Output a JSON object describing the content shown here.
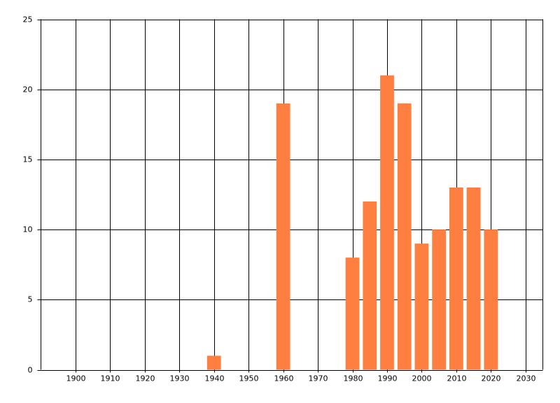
{
  "chart_data": {
    "type": "bar",
    "x": [
      1940,
      1960,
      1980,
      1985,
      1990,
      1995,
      2000,
      2005,
      2010,
      2015,
      2020
    ],
    "values": [
      1,
      19,
      8,
      12,
      21,
      19,
      9,
      10,
      13,
      13,
      10
    ],
    "color": "#ff7f40",
    "xlim": [
      1890,
      2035
    ],
    "xticks": [
      1900,
      1910,
      1920,
      1930,
      1940,
      1950,
      1960,
      1970,
      1980,
      1990,
      2000,
      2010,
      2020,
      2030
    ],
    "ylim": [
      0,
      25
    ],
    "yticks": [
      0,
      5,
      10,
      15,
      20,
      25
    ],
    "grid": true
  }
}
